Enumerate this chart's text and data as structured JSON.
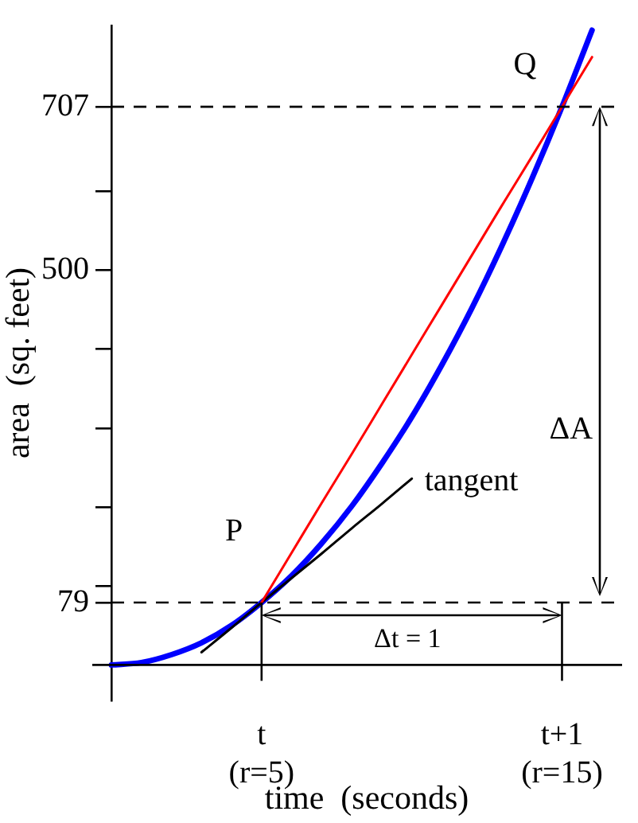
{
  "chart_data": {
    "type": "line",
    "xlabel": "time  (seconds)",
    "ylabel": "area  (sq. feet)",
    "categories": [
      null,
      null,
      null,
      null,
      null,
      "t\n(r=5)",
      null,
      null,
      null,
      null,
      null,
      null,
      null,
      null,
      null,
      "t+1\n(r=15)",
      null,
      null
    ],
    "ylim": [
      -45,
      810
    ],
    "yticks": [
      79,
      {
        "value": 100,
        "label": null
      },
      {
        "value": 200,
        "label": null
      },
      {
        "value": 300,
        "label": null
      },
      {
        "value": 400,
        "label": null
      },
      500,
      {
        "value": 600,
        "label": null
      },
      707
    ],
    "series": [
      {
        "color": "#ff0000",
        "values": [
          null,
          null,
          null,
          null,
          null,
          79,
          142,
          205,
          267,
          330,
          393,
          456,
          519,
          582,
          644,
          707,
          770,
          null
        ]
      },
      {
        "name": "tangent",
        "color": "#000000",
        "values": [
          null,
          null,
          null,
          16,
          47,
          79,
          110,
          141,
          173,
          204,
          236,
          null,
          null,
          null,
          null,
          null,
          null,
          null
        ]
      },
      {
        "color": "#0000ff",
        "values": [
          0,
          3,
          13,
          28,
          50,
          79,
          113,
          154,
          201,
          255,
          314,
          380,
          452,
          531,
          616,
          707,
          804,
          null
        ]
      }
    ],
    "ref_lines": [
      {
        "axis": "y",
        "value": 707,
        "color": "#000000",
        "line_style": "dashed"
      },
      {
        "axis": "y",
        "value": 79,
        "color": "#000000",
        "line_style": "dashed"
      }
    ],
    "annotations": [
      "P",
      "Q",
      "ΔA",
      "Δt = 1"
    ],
    "grid": false,
    "legend": false,
    "marker": "none",
    "line_style": "solid"
  }
}
